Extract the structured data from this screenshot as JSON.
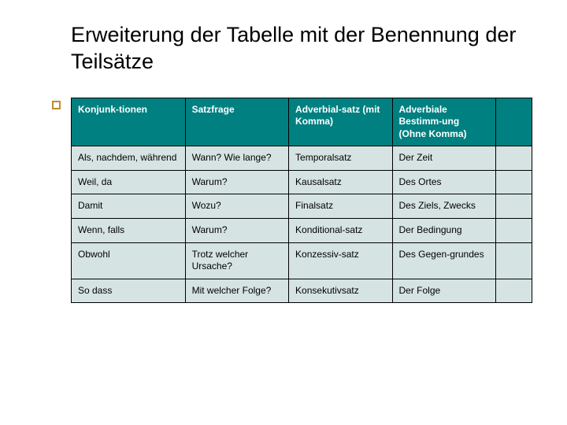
{
  "title": "Erweiterung der Tabelle mit der Benennung der Teilsätze",
  "table": {
    "type": "table",
    "header_bg": "#008080",
    "header_fg": "#ffffff",
    "cell_bg": "#d6e3e3",
    "cell_fg": "#000000",
    "border_color": "#000000",
    "font_size": 12,
    "columns": [
      {
        "label": "Konjunk-tionen",
        "width": "22%"
      },
      {
        "label": "Satzfrage",
        "width": "20%"
      },
      {
        "label": "Adverbial-satz (mit Komma)",
        "width": "20%"
      },
      {
        "label": "Adverbiale Bestimm-ung (Ohne Komma)",
        "width": "20%"
      },
      {
        "label": "",
        "width": "7%"
      }
    ],
    "rows": [
      [
        "Als, nachdem, während",
        "Wann? Wie lange?",
        "Temporalsatz",
        "Der Zeit",
        ""
      ],
      [
        "Weil, da",
        "Warum?",
        "Kausalsatz",
        "Des Ortes",
        ""
      ],
      [
        "Damit",
        "Wozu?",
        "Finalsatz",
        "Des Ziels, Zwecks",
        ""
      ],
      [
        "Wenn, falls",
        "Warum?",
        "Konditional-satz",
        "Der Bedingung",
        ""
      ],
      [
        "Obwohl",
        "Trotz welcher Ursache?",
        "Konzessiv-satz",
        "Des Gegen-grundes",
        ""
      ],
      [
        "So dass",
        "Mit welcher Folge?",
        "Konsekutivsatz",
        "Der Folge",
        ""
      ]
    ]
  },
  "accent": {
    "border_color": "#c08a2e",
    "size": 11
  }
}
